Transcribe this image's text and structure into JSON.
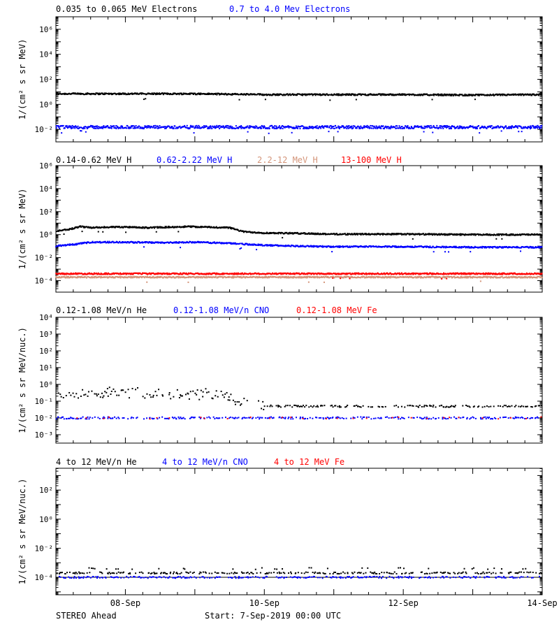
{
  "figure": {
    "footer_left": "STEREO Ahead",
    "footer_center": "Start:  7-Sep-2019 00:00 UTC",
    "x_start": "2019-09-07",
    "x_end": "2019-09-14",
    "x_ticks": [
      "08-Sep",
      "10-Sep",
      "12-Sep",
      "14-Sep"
    ]
  },
  "colors": {
    "black": "#000000",
    "blue": "#0000ff",
    "tan": "#d4957a",
    "red": "#ff0000"
  },
  "chart_data": [
    {
      "type": "scatter",
      "panel": "electrons",
      "ylabel": "1/(cm² s sr MeV)",
      "ylog": true,
      "ylim_exp": [
        -3,
        7
      ],
      "ytick_exps": [
        -2,
        0,
        2,
        4,
        6
      ],
      "grid": false,
      "series": [
        {
          "name": "0.035 to 0.065 MeV Electrons",
          "color": "black",
          "x_days": [
            0,
            0.5,
            1,
            2,
            3,
            4,
            5,
            6,
            7
          ],
          "values": [
            7,
            7,
            7,
            7,
            6,
            6,
            6,
            5.5,
            6
          ]
        },
        {
          "name": "0.7 to 4.0 Mev Electrons",
          "color": "blue",
          "x_days": [
            0,
            1,
            2,
            3,
            4,
            5,
            6,
            7
          ],
          "values": [
            0.015,
            0.015,
            0.015,
            0.015,
            0.015,
            0.015,
            0.015,
            0.015
          ]
        }
      ]
    },
    {
      "type": "scatter",
      "panel": "protons",
      "ylabel": "1/(cm² s sr MeV)",
      "ylog": true,
      "ylim_exp": [
        -5,
        6
      ],
      "ytick_exps": [
        -4,
        -2,
        0,
        2,
        4,
        6
      ],
      "grid": false,
      "series": [
        {
          "name": "0.14-0.62 MeV H",
          "color": "black",
          "x_days": [
            0,
            0.2,
            0.35,
            0.5,
            0.7,
            1.0,
            1.3,
            1.6,
            1.9,
            2.2,
            2.5,
            2.7,
            3.0,
            3.5,
            4,
            5,
            6,
            7
          ],
          "values": [
            2,
            3,
            5,
            4,
            4.5,
            4.5,
            4,
            4.5,
            5,
            4.5,
            4,
            1.8,
            1.4,
            1.3,
            1.1,
            1.1,
            1.0,
            1.0
          ]
        },
        {
          "name": "0.62-2.22 MeV H",
          "color": "blue",
          "x_days": [
            0,
            0.3,
            0.5,
            1,
            1.5,
            2,
            2.5,
            3,
            3.5,
            4,
            5,
            6,
            7
          ],
          "values": [
            0.1,
            0.15,
            0.22,
            0.22,
            0.2,
            0.22,
            0.18,
            0.12,
            0.1,
            0.09,
            0.09,
            0.08,
            0.08
          ]
        },
        {
          "name": "2.2-12 MeV H",
          "color": "tan",
          "x_days": [
            0,
            1,
            2,
            3,
            4,
            5,
            6,
            7
          ],
          "values": [
            0.0002,
            0.0002,
            0.0002,
            0.0002,
            0.0002,
            0.0002,
            0.0002,
            0.0002
          ]
        },
        {
          "name": "13-100 MeV H",
          "color": "red",
          "x_days": [
            0,
            1,
            2,
            3,
            4,
            5,
            6,
            7
          ],
          "values": [
            0.0004,
            0.0004,
            0.0004,
            0.0004,
            0.0004,
            0.0004,
            0.0004,
            0.0004
          ]
        }
      ]
    },
    {
      "type": "scatter",
      "panel": "low-energy-ions",
      "ylabel": "1/(cm² s sr MeV/nuc.)",
      "ylog": true,
      "ylim_exp": [
        -3.5,
        4
      ],
      "ytick_exps": [
        -3,
        -2,
        -1,
        0,
        1,
        2,
        3,
        4
      ],
      "grid": false,
      "series": [
        {
          "name": "0.12-1.08 MeV/n He",
          "color": "black",
          "x_days": [
            0,
            0.5,
            1,
            1.5,
            2,
            2.3,
            2.5,
            3,
            4,
            5,
            6,
            7
          ],
          "values": [
            0.2,
            0.35,
            0.3,
            0.3,
            0.25,
            0.25,
            0.15,
            0.05,
            0.05,
            0.05,
            0.05,
            0.05
          ]
        },
        {
          "name": "0.12-1.08 MeV/n CNO",
          "color": "blue",
          "x_days": [
            0,
            1,
            2,
            3,
            4,
            5,
            6,
            7
          ],
          "values": [
            0.01,
            0.01,
            0.01,
            0.01,
            0.01,
            0.01,
            0.01,
            0.01
          ]
        },
        {
          "name": "0.12-1.08 MeV Fe",
          "color": "red",
          "x_days": [
            0.3,
            1.0,
            2.2,
            3.0,
            4.2,
            5.3,
            6.2
          ],
          "values": [
            0.01,
            0.01,
            0.01,
            0.01,
            0.01,
            0.01,
            0.01
          ]
        }
      ]
    },
    {
      "type": "scatter",
      "panel": "high-energy-ions",
      "ylabel": "1/(cm² s sr MeV/nuc.)",
      "ylog": true,
      "ylim_exp": [
        -5.2,
        3.5
      ],
      "ytick_exps": [
        -4,
        -2,
        0,
        2
      ],
      "grid": false,
      "hline_exp": -4,
      "series": [
        {
          "name": "4 to 12 MeV/n He",
          "color": "black",
          "x_days": [
            0,
            1,
            2,
            3,
            4,
            5,
            6,
            7
          ],
          "values": [
            0.0002,
            0.0002,
            0.0002,
            0.0002,
            0.0002,
            0.0002,
            0.0002,
            0.0002
          ]
        },
        {
          "name": "4 to 12 MeV/n CNO",
          "color": "blue",
          "x_days": [
            0,
            1,
            2,
            3,
            4,
            5,
            6,
            7
          ],
          "values": [
            0.0001,
            0.0001,
            0.0001,
            0.0001,
            0.0001,
            0.0001,
            0.0001,
            0.0001
          ]
        },
        {
          "name": "4 to 12 MeV Fe",
          "color": "red",
          "x_days": [],
          "values": []
        }
      ]
    }
  ]
}
